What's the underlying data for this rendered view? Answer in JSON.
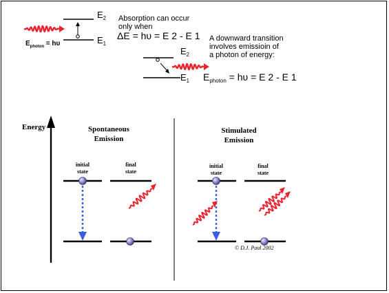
{
  "absorption": {
    "e2": "E",
    "e2_sub": "2",
    "e1": "E",
    "e1_sub": "1",
    "text_line1": "Absorption can occur",
    "text_line2": "only when",
    "equation": "ΔE = hυ = E 2 -  E 1",
    "photon_E": "E",
    "photon_sub": "photon",
    "photon_rest": " = hυ"
  },
  "emission": {
    "text_line1": "A downward transition",
    "text_line2": "involves emissioin of",
    "text_line3": "a photon of energy:",
    "e2": "E",
    "e2_sub": "2",
    "e1": "E",
    "e1_sub": "1",
    "eq_E": "E",
    "eq_sub": "photon",
    "eq_rest": " = hυ = E 2 -  E 1"
  },
  "diagram": {
    "energy_label": "Energy",
    "spontaneous_line1": "Spontaneous",
    "spontaneous_line2": "Emission",
    "stimulated_line1": "Stimulated",
    "stimulated_line2": "Emission",
    "initial_line1": "initial",
    "initial_line2": "state",
    "final_line1": "final",
    "final_line2": "state",
    "copyright": "© D.J. Paul 2002"
  },
  "colors": {
    "photon_wave": "#e8242e",
    "dashed_arrow": "#3b5fe0",
    "atom": "#8a86c8"
  }
}
